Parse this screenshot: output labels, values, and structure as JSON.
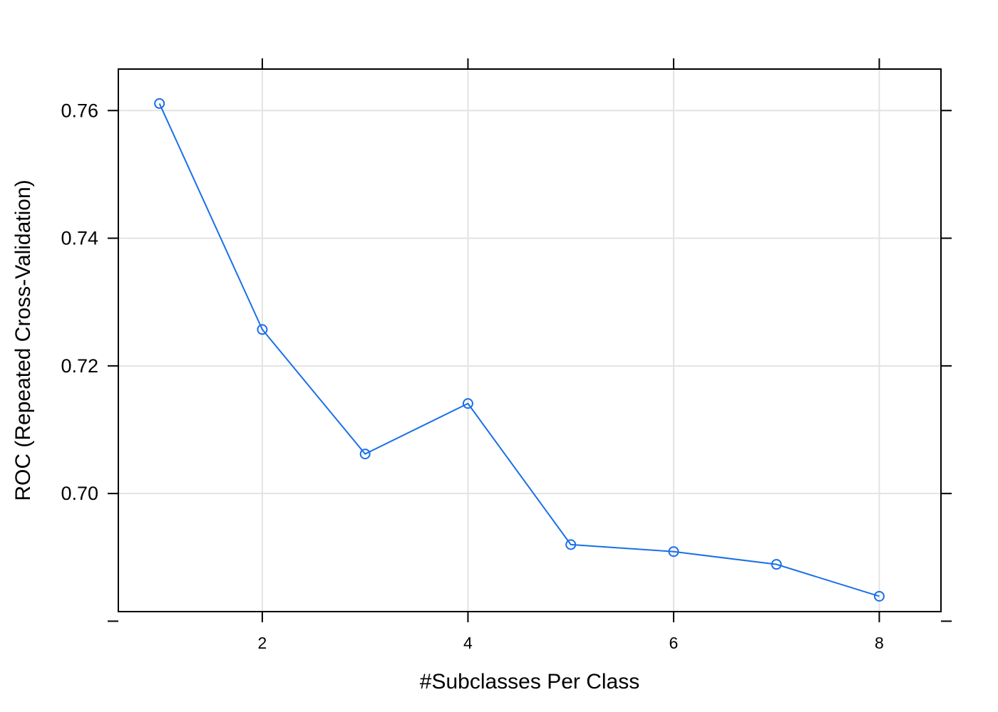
{
  "chart_data": {
    "type": "line",
    "xlabel": "#Subclasses Per Class",
    "ylabel": "ROC (Repeated Cross-Validation)",
    "x": [
      1,
      2,
      3,
      4,
      5,
      6,
      7,
      8
    ],
    "series": [
      {
        "values": [
          0.7611,
          0.7257,
          0.7062,
          0.7141,
          0.692,
          0.6909,
          0.6889,
          0.6839
        ]
      }
    ],
    "xlim": [
      0.6,
      8.6
    ],
    "ylim": [
      0.6815,
      0.7665
    ],
    "x_ticks": [
      {
        "value": 2,
        "label": "2"
      },
      {
        "value": 4,
        "label": "4"
      },
      {
        "value": 6,
        "label": "6"
      },
      {
        "value": 8,
        "label": "8"
      }
    ],
    "y_ticks": [
      {
        "value": 0.76,
        "label": "0.76"
      },
      {
        "value": 0.74,
        "label": "0.74"
      },
      {
        "value": 0.72,
        "label": "0.72"
      },
      {
        "value": 0.7,
        "label": "0.70"
      },
      {
        "value": 0.68,
        "label": ""
      }
    ],
    "x_gridlines": [
      2,
      4,
      6,
      8
    ],
    "y_gridlines": [
      0.76,
      0.74,
      0.72,
      0.7
    ],
    "grid": true,
    "line_color": "#1a6fe8",
    "grid_color": "#e3e3e3",
    "frame_color": "#000000"
  }
}
